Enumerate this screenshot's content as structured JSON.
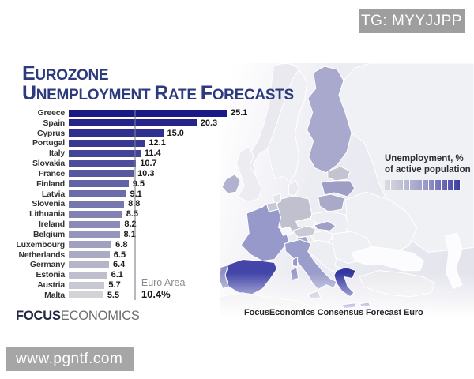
{
  "watermark_top": "TG: MYYJJPP",
  "watermark_bottom": "www.pgntf.com",
  "title": {
    "line1": "Eurozone",
    "word1": "Unemployment",
    "word2": "Rate",
    "word3": "Forecasts"
  },
  "chart_data": {
    "type": "bar",
    "orientation": "horizontal",
    "title": "Eurozone Unemployment Rate Forecasts",
    "unit": "% of active population",
    "categories": [
      "Greece",
      "Spain",
      "Cyprus",
      "Portugal",
      "Italy",
      "Slovakia",
      "France",
      "Finland",
      "Latvia",
      "Slovenia",
      "Lithuania",
      "Ireland",
      "Belgium",
      "Luxembourg",
      "Netherlands",
      "Germany",
      "Estonia",
      "Austria",
      "Malta"
    ],
    "values": [
      25.1,
      20.3,
      15.0,
      12.1,
      11.4,
      10.7,
      10.3,
      9.5,
      9.1,
      8.8,
      8.5,
      8.2,
      8.1,
      6.8,
      6.5,
      6.4,
      6.1,
      5.7,
      5.5
    ],
    "xlim": [
      0,
      25.1
    ],
    "grid": false,
    "reference_line": {
      "label": "Euro Area",
      "value": 10.4,
      "display": "10.4%"
    },
    "bar_color_start": "#1a1a86",
    "bar_color_end": "#d3d3d7"
  },
  "legend": {
    "line1": "Unemployment, %",
    "line2": "of active population",
    "gradient": [
      "#dcdce0",
      "#9898c6",
      "#3a3aa2"
    ]
  },
  "caption": "FocusEconomics Consensus Forecast Euro",
  "logo": {
    "bold": "FOCUS",
    "rest": "ECONOMICS"
  },
  "map": {
    "fills": {
      "norway": "#e9e9ef",
      "sweden": "#eef0f4",
      "finland": "#a9a9cd",
      "russia": "#f0f1f5",
      "estonia": "#c3c3d1",
      "latvia": "#9d9dc6",
      "lithuania": "#a9a9c9",
      "east": "#eef0f3",
      "poland": "#edeef3",
      "uk": "#ededf1",
      "ireland": "#b2b2ce",
      "denmark": "#e9e9ef",
      "germany": "#c0c0ce",
      "netherlands": "#e2e2ea",
      "belgium": "#c9c9d6",
      "france": "#9799cb",
      "switzerland": "#f7f7f9",
      "austria": "#cacad4",
      "czech": "#eef0f4",
      "slovakia": "#9f9fc8",
      "hungary": "#eef0f4",
      "slovenia": "#a5a5c9",
      "balkans": "#edeef2",
      "romania": "#eef0f4",
      "italy": "#9b9dca",
      "sicily": "#b4b4cc",
      "sardinia": "#9b9dca",
      "corsica": "#9799cb",
      "spain": "#4345a8",
      "portugal": "#8e90c4",
      "greece": "#3537a0",
      "crete": "#3537a0",
      "turkey": "#ebebef",
      "blacksea": "#fcfcfe",
      "caspian": "#fcfcfe",
      "africa": "#e9e9ed",
      "cyprus": "#4547a6"
    }
  }
}
